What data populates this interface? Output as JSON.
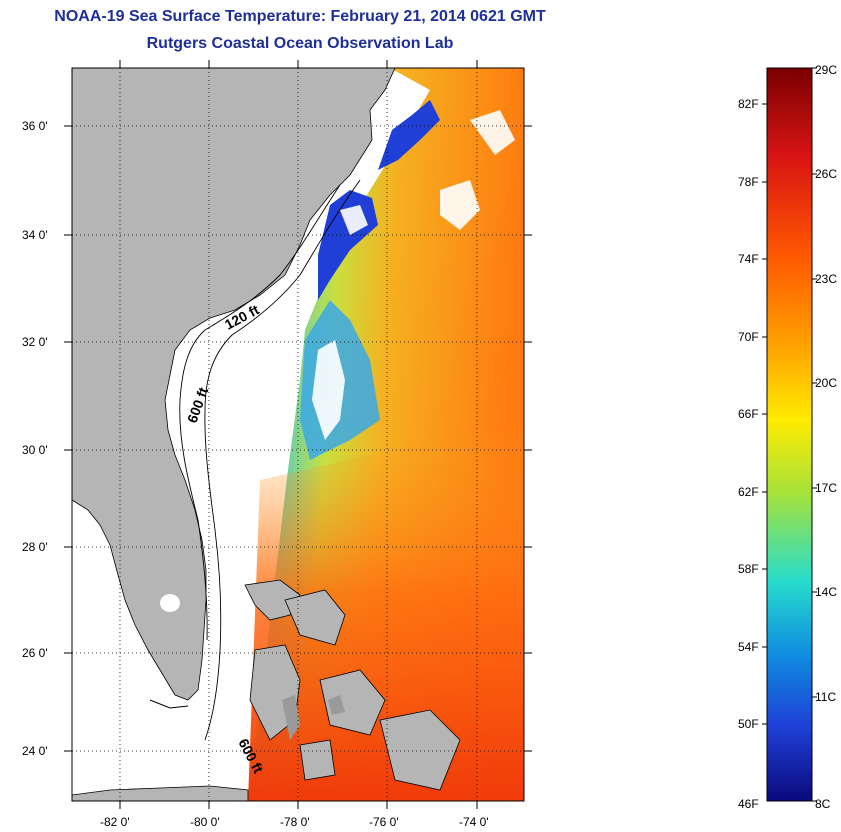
{
  "title": "NOAA-19 Sea Surface Temperature:  February 21, 2014 0621 GMT",
  "subtitle": "Rutgers Coastal Ocean Observation Lab",
  "map": {
    "lat_ticks": [
      "36 0'",
      "34 0'",
      "32 0'",
      "30 0'",
      "28 0'",
      "26 0'",
      "24 0'"
    ],
    "lon_ticks": [
      "-82 0'",
      "-80 0'",
      "-78 0'",
      "-76 0'",
      "-74 0'"
    ],
    "contour_labels": [
      "120 ft",
      "600 ft",
      "600 ft"
    ],
    "land_color": "#b5b5b5",
    "grid": true
  },
  "colorbar": {
    "fahrenheit": [
      "82F",
      "78F",
      "74F",
      "70F",
      "66F",
      "62F",
      "58F",
      "54F",
      "50F",
      "46F"
    ],
    "celsius": [
      "29C",
      "26C",
      "23C",
      "20C",
      "17C",
      "14C",
      "11C",
      "8C"
    ],
    "stops": [
      "#7a0000",
      "#d81414",
      "#ff5a00",
      "#ffa300",
      "#ffeb00",
      "#a6e23a",
      "#27dccc",
      "#0f8de0",
      "#1f3fd6",
      "#0a0a7c"
    ]
  }
}
